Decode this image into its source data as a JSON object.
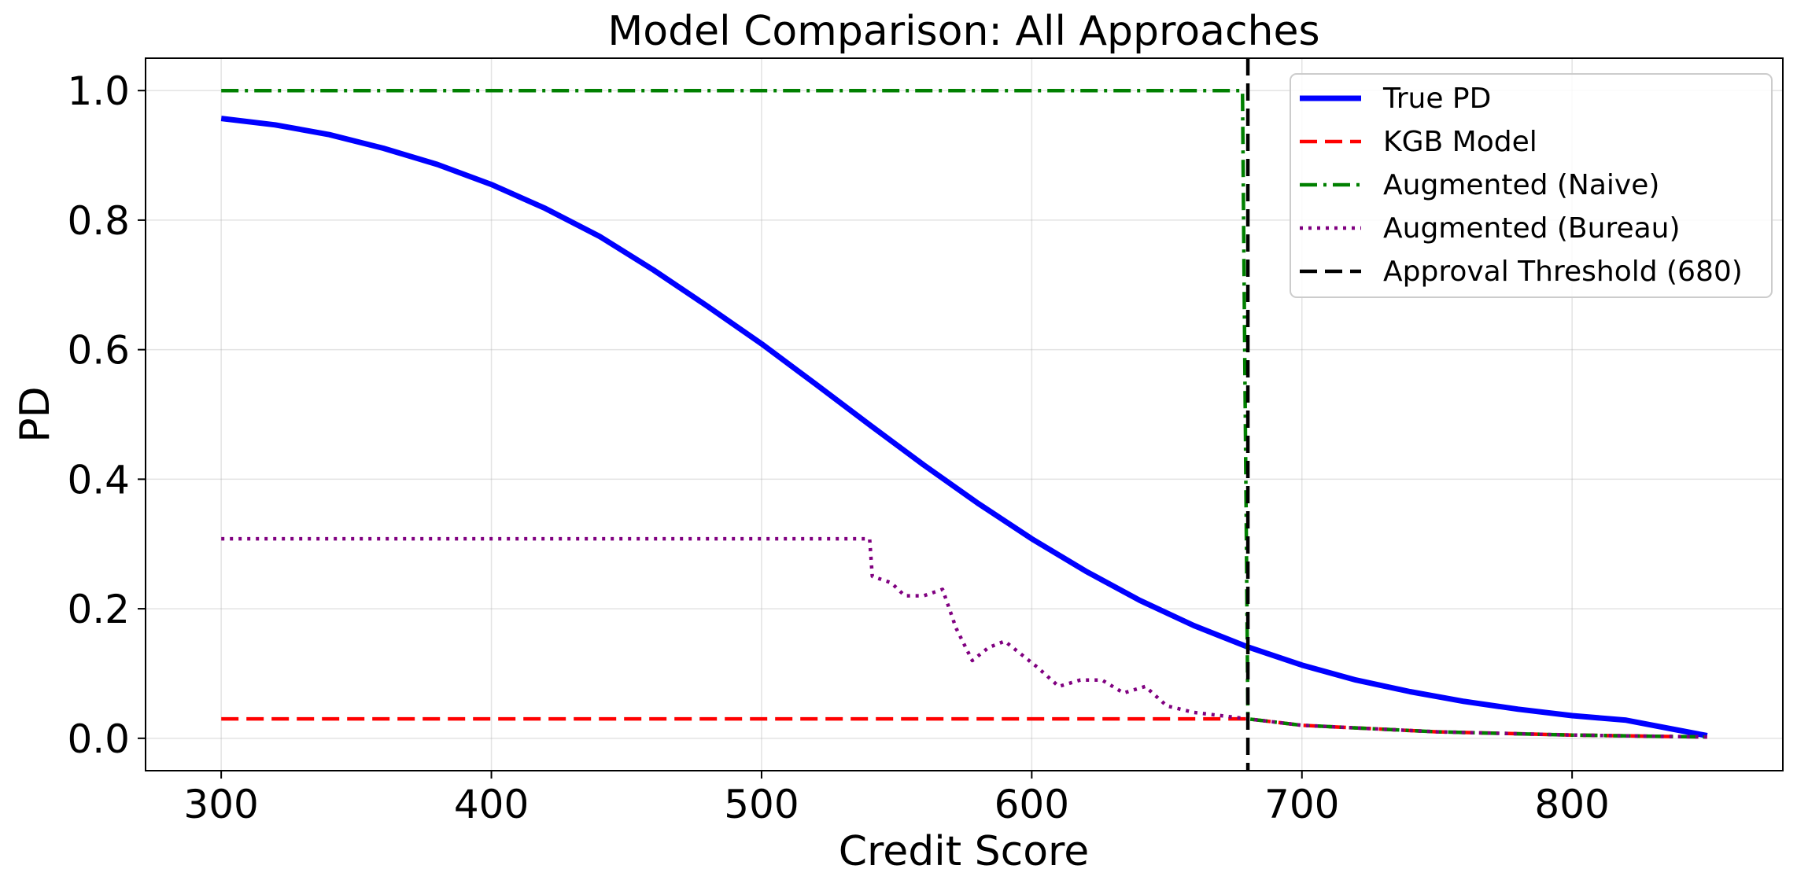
{
  "chart_data": {
    "type": "line",
    "title": "Model Comparison: All Approaches",
    "xlabel": "Credit Score",
    "ylabel": "PD",
    "xlim": [
      272,
      878
    ],
    "ylim": [
      -0.05,
      1.05
    ],
    "xticks": [
      300,
      400,
      500,
      600,
      700,
      800
    ],
    "yticks": [
      0.0,
      0.2,
      0.4,
      0.6,
      0.8,
      1.0
    ],
    "xtick_labels": [
      "300",
      "400",
      "500",
      "600",
      "700",
      "800"
    ],
    "ytick_labels": [
      "0.0",
      "0.2",
      "0.4",
      "0.6",
      "0.8",
      "1.0"
    ],
    "grid": true,
    "legend_position": "top-right",
    "series": [
      {
        "name": "True PD",
        "color": "#0000ff",
        "style": "solid",
        "x": [
          300,
          320,
          340,
          360,
          380,
          400,
          420,
          440,
          460,
          480,
          500,
          520,
          540,
          560,
          580,
          600,
          620,
          640,
          660,
          680,
          700,
          720,
          740,
          760,
          780,
          800,
          820,
          850
        ],
        "y": [
          0.957,
          0.947,
          0.932,
          0.911,
          0.886,
          0.855,
          0.818,
          0.775,
          0.723,
          0.667,
          0.609,
          0.547,
          0.484,
          0.422,
          0.363,
          0.308,
          0.258,
          0.213,
          0.174,
          0.141,
          0.113,
          0.09,
          0.072,
          0.057,
          0.045,
          0.035,
          0.028,
          0.004
        ]
      },
      {
        "name": "KGB Model",
        "color": "#ff0000",
        "style": "dashed",
        "x": [
          300,
          680,
          700,
          750,
          800,
          850
        ],
        "y": [
          0.03,
          0.03,
          0.02,
          0.01,
          0.005,
          0.002
        ]
      },
      {
        "name": "Augmented (Naive)",
        "color": "#008000",
        "style": "dashdot",
        "x": [
          300,
          678,
          680,
          700,
          750,
          800,
          850
        ],
        "y": [
          1.0,
          1.0,
          0.03,
          0.02,
          0.01,
          0.005,
          0.002
        ]
      },
      {
        "name": "Augmented (Bureau)",
        "color": "#800080",
        "style": "dotted",
        "x": [
          300,
          540,
          541,
          548,
          553,
          560,
          567,
          572,
          578,
          584,
          590,
          596,
          602,
          610,
          618,
          626,
          634,
          642,
          650,
          660,
          670,
          680,
          700,
          750,
          800,
          850
        ],
        "y": [
          0.308,
          0.308,
          0.25,
          0.24,
          0.22,
          0.22,
          0.23,
          0.17,
          0.12,
          0.14,
          0.15,
          0.13,
          0.11,
          0.08,
          0.09,
          0.09,
          0.07,
          0.08,
          0.05,
          0.04,
          0.035,
          0.03,
          0.02,
          0.01,
          0.005,
          0.002
        ]
      }
    ],
    "vlines": [
      {
        "name": "Approval Threshold (680)",
        "x": 680,
        "color": "#000000",
        "style": "dashed"
      }
    ]
  }
}
